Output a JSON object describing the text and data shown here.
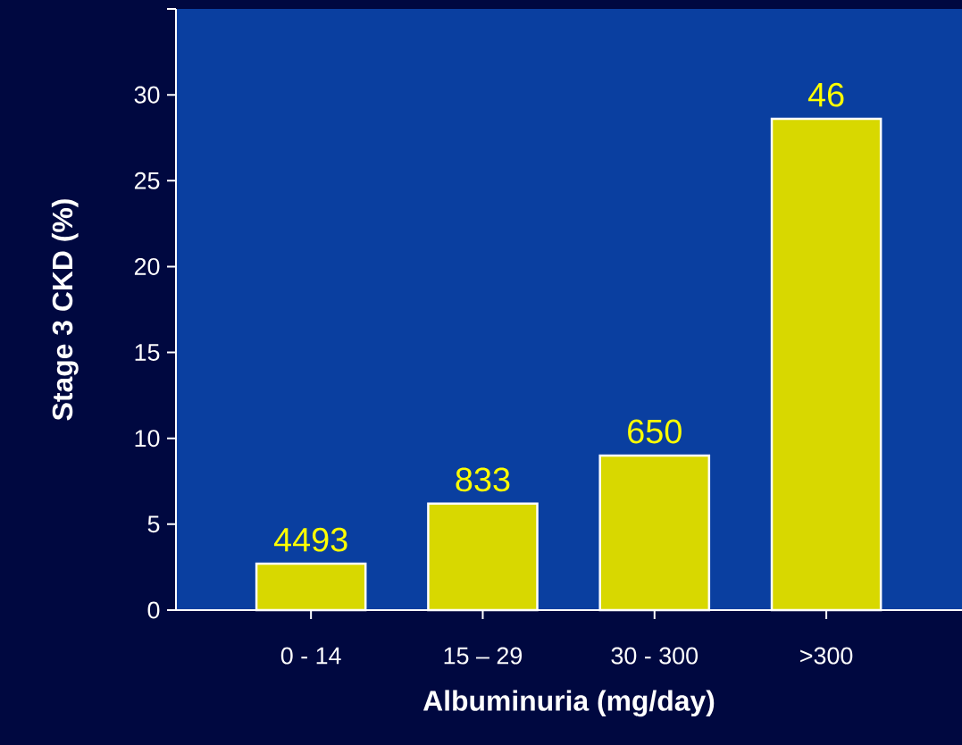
{
  "chart_data": {
    "type": "bar",
    "xlabel": "Albuminuria (mg/day)",
    "ylabel": "Stage 3 CKD (%)",
    "categories": [
      "0 - 14",
      "15 – 29",
      "30 - 300",
      ">300"
    ],
    "values": [
      2.7,
      6.2,
      9.0,
      28.6
    ],
    "annotations": [
      {
        "text": "4493",
        "x": "0 - 14",
        "y": 2.7
      },
      {
        "text": "833",
        "x": "15 – 29",
        "y": 6.2
      },
      {
        "text": "650",
        "x": "30 - 300",
        "y": 9.0
      },
      {
        "text": "46",
        "x": ">300",
        "y": 28.6
      }
    ],
    "color": "#d8d800",
    "ylim": [
      0,
      35
    ],
    "yticks": [
      0,
      5,
      10,
      15,
      20,
      25,
      30,
      {
        "value": 35,
        "label": null
      }
    ]
  }
}
